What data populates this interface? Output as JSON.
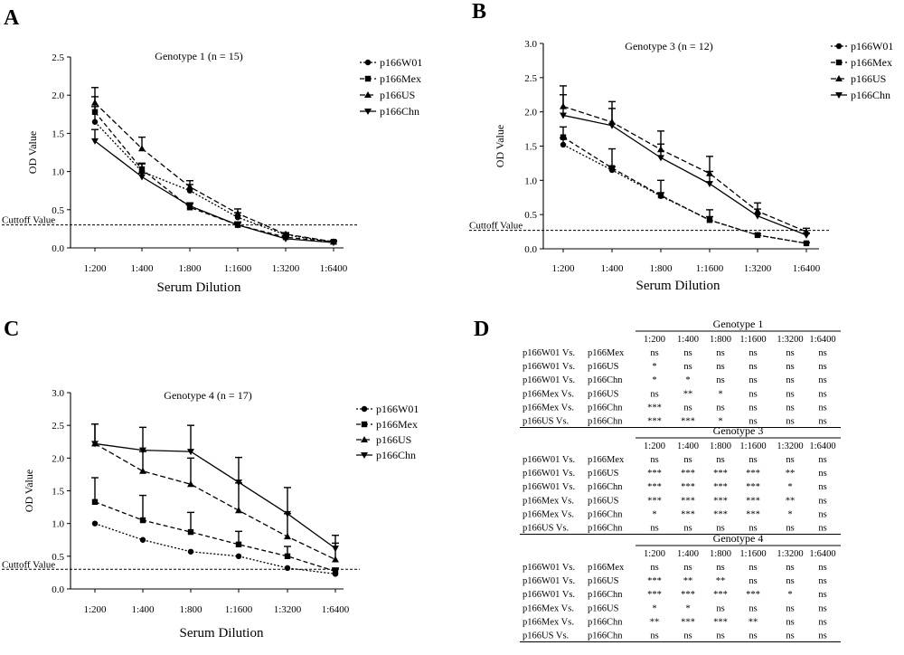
{
  "panels": {
    "A": {
      "letter": "A",
      "title": "Genotype 1 (n = 15)",
      "ylabel": "OD Value",
      "xlabel": "Serum Dilution",
      "cutoff_label": "Cuttoff Value"
    },
    "B": {
      "letter": "B",
      "title": "Genotype 3 (n = 12)",
      "ylabel": "OD Value",
      "xlabel": "Serum Dilution",
      "cutoff_label": "Cuttoff Value"
    },
    "C": {
      "letter": "C",
      "title": "Genotype 4 (n = 17)",
      "ylabel": "OD Value",
      "xlabel": "Serum Dilution",
      "cutoff_label": "Cuttoff Value"
    },
    "D": {
      "letter": "D"
    }
  },
  "chart_data": [
    {
      "type": "line",
      "title": "Genotype 1 (n = 15)",
      "xlabel": "Serum Dilution",
      "ylabel": "OD Value",
      "categories": [
        "1:200",
        "1:400",
        "1:800",
        "1:1600",
        "1:3200",
        "1:6400"
      ],
      "ylim": [
        0,
        2.5
      ],
      "yticks": [
        "0.0",
        "0.5",
        "1.0",
        "1.5",
        "2.0",
        "2.5"
      ],
      "cutoff": 0.3,
      "cutoff_label": "Cuttoff Value",
      "legend_position": "top-right",
      "series": [
        {
          "name": "p166W01",
          "marker": "circle",
          "dash": "2,2",
          "values": [
            1.65,
            1.0,
            0.75,
            0.4,
            0.17,
            0.08
          ],
          "err": [
            0.2,
            0.1,
            0.08,
            0.06,
            0.02,
            0.01
          ]
        },
        {
          "name": "p166Mex",
          "marker": "square",
          "dash": "5,3",
          "values": [
            1.78,
            1.03,
            0.53,
            0.3,
            0.14,
            0.08
          ],
          "err": [
            0.2,
            0.08,
            0.05,
            0.04,
            0.02,
            0.01
          ]
        },
        {
          "name": "p166US",
          "marker": "triangle-up",
          "dash": "6,3",
          "values": [
            1.9,
            1.3,
            0.8,
            0.45,
            0.18,
            0.08
          ],
          "err": [
            0.2,
            0.15,
            0.08,
            0.06,
            0.02,
            0.01
          ]
        },
        {
          "name": "p166Chn",
          "marker": "triangle-down",
          "dash": "",
          "values": [
            1.4,
            0.93,
            0.55,
            0.3,
            0.12,
            0.07
          ],
          "err": [
            0.15,
            0.05,
            0.04,
            0.03,
            0.02,
            0.01
          ]
        }
      ]
    },
    {
      "type": "line",
      "title": "Genotype 3 (n = 12)",
      "xlabel": "Serum Dilution",
      "ylabel": "OD Value",
      "categories": [
        "1:200",
        "1:400",
        "1:800",
        "1:1600",
        "1:3200",
        "1:6400"
      ],
      "ylim": [
        0,
        3.0
      ],
      "yticks": [
        "0.0",
        "0.5",
        "1.0",
        "1.5",
        "2.0",
        "2.5",
        "3.0"
      ],
      "cutoff": 0.27,
      "cutoff_label": "Cuttoff Value",
      "legend_position": "top-right",
      "series": [
        {
          "name": "p166W01",
          "marker": "circle",
          "dash": "2,2",
          "values": [
            1.52,
            1.15,
            0.77,
            0.42,
            0.2,
            0.08
          ],
          "err": [
            0.1,
            0.05,
            0.05,
            0.05,
            0.02,
            0.01
          ]
        },
        {
          "name": "p166Mex",
          "marker": "square",
          "dash": "5,3",
          "values": [
            1.63,
            1.18,
            0.78,
            0.42,
            0.2,
            0.08
          ],
          "err": [
            0.15,
            0.28,
            0.22,
            0.15,
            0.02,
            0.01
          ]
        },
        {
          "name": "p166US",
          "marker": "triangle-up",
          "dash": "6,3",
          "values": [
            2.08,
            1.85,
            1.45,
            1.1,
            0.55,
            0.25
          ],
          "err": [
            0.3,
            0.3,
            0.27,
            0.25,
            0.12,
            0.05
          ]
        },
        {
          "name": "p166Chn",
          "marker": "triangle-down",
          "dash": "",
          "values": [
            1.95,
            1.8,
            1.33,
            0.95,
            0.48,
            0.2
          ],
          "err": [
            0.3,
            0.25,
            0.2,
            0.18,
            0.1,
            0.03
          ]
        }
      ]
    },
    {
      "type": "line",
      "title": "Genotype 4 (n = 17)",
      "xlabel": "Serum Dilution",
      "ylabel": "OD Value",
      "categories": [
        "1:200",
        "1:400",
        "1:800",
        "1:1600",
        "1:3200",
        "1:6400"
      ],
      "ylim": [
        0,
        3.0
      ],
      "yticks": [
        "0.0",
        "0.5",
        "1.0",
        "1.5",
        "2.0",
        "2.5",
        "3.0"
      ],
      "cutoff": 0.3,
      "cutoff_label": "Cuttoff Value",
      "legend_position": "top-right",
      "series": [
        {
          "name": "p166W01",
          "marker": "circle",
          "dash": "2,2",
          "values": [
            1.0,
            0.75,
            0.57,
            0.5,
            0.32,
            0.23
          ],
          "err": [
            0,
            0,
            0,
            0,
            0,
            0
          ]
        },
        {
          "name": "p166Mex",
          "marker": "square",
          "dash": "5,3",
          "values": [
            1.33,
            1.05,
            0.87,
            0.68,
            0.5,
            0.27
          ],
          "err": [
            0.37,
            0.38,
            0.3,
            0.2,
            0.15,
            0.05
          ]
        },
        {
          "name": "p166US",
          "marker": "triangle-up",
          "dash": "6,3",
          "values": [
            2.22,
            1.8,
            1.6,
            1.2,
            0.8,
            0.45
          ],
          "err": [
            0.3,
            0.3,
            0.4,
            0.42,
            0.35,
            0.25
          ]
        },
        {
          "name": "p166Chn",
          "marker": "triangle-down",
          "dash": "",
          "values": [
            2.22,
            2.12,
            2.1,
            1.63,
            1.15,
            0.62
          ],
          "err": [
            0.3,
            0.35,
            0.4,
            0.38,
            0.4,
            0.2
          ]
        }
      ]
    },
    {
      "type": "table",
      "columns": [
        "1:200",
        "1:400",
        "1:800",
        "1:1600",
        "1:3200",
        "1:6400"
      ],
      "groups": [
        {
          "title": "Genotype 1",
          "rows": [
            {
              "a": "p166W01 Vs.",
              "b": "p166Mex",
              "v": [
                "ns",
                "ns",
                "ns",
                "ns",
                "ns",
                "ns"
              ]
            },
            {
              "a": "p166W01 Vs.",
              "b": "p166US",
              "v": [
                "*",
                "ns",
                "ns",
                "ns",
                "ns",
                "ns"
              ]
            },
            {
              "a": "p166W01 Vs.",
              "b": "p166Chn",
              "v": [
                "*",
                "*",
                "ns",
                "ns",
                "ns",
                "ns"
              ]
            },
            {
              "a": "p166Mex Vs.",
              "b": "p166US",
              "v": [
                "ns",
                "**",
                "*",
                "ns",
                "ns",
                "ns"
              ]
            },
            {
              "a": "p166Mex Vs.",
              "b": "p166Chn",
              "v": [
                "***",
                "ns",
                "ns",
                "ns",
                "ns",
                "ns"
              ]
            },
            {
              "a": "p166US   Vs.",
              "b": "p166Chn",
              "v": [
                "***",
                "***",
                "*",
                "ns",
                "ns",
                "ns"
              ]
            }
          ]
        },
        {
          "title": "Genotype 3",
          "rows": [
            {
              "a": "p166W01 Vs.",
              "b": "p166Mex",
              "v": [
                "ns",
                "ns",
                "ns",
                "ns",
                "ns",
                "ns"
              ]
            },
            {
              "a": "p166W01 Vs.",
              "b": "p166US",
              "v": [
                "***",
                "***",
                "***",
                "***",
                "**",
                "ns"
              ]
            },
            {
              "a": "p166W01 Vs.",
              "b": "p166Chn",
              "v": [
                "***",
                "***",
                "***",
                "***",
                "*",
                "ns"
              ]
            },
            {
              "a": "p166Mex Vs.",
              "b": "p166US",
              "v": [
                "***",
                "***",
                "***",
                "***",
                "**",
                "ns"
              ]
            },
            {
              "a": "p166Mex Vs.",
              "b": "p166Chn",
              "v": [
                "*",
                "***",
                "***",
                "***",
                "*",
                "ns"
              ]
            },
            {
              "a": "p166US   Vs.",
              "b": "p166Chn",
              "v": [
                "ns",
                "ns",
                "ns",
                "ns",
                "ns",
                "ns"
              ]
            }
          ]
        },
        {
          "title": "Genotype 4",
          "rows": [
            {
              "a": "p166W01 Vs.",
              "b": "p166Mex",
              "v": [
                "ns",
                "ns",
                "ns",
                "ns",
                "ns",
                "ns"
              ]
            },
            {
              "a": "p166W01 Vs.",
              "b": "p166US",
              "v": [
                "***",
                "**",
                "**",
                "ns",
                "ns",
                "ns"
              ]
            },
            {
              "a": "p166W01 Vs.",
              "b": "p166Chn",
              "v": [
                "***",
                "***",
                "***",
                "***",
                "*",
                "ns"
              ]
            },
            {
              "a": "p166Mex Vs.",
              "b": "p166US",
              "v": [
                "*",
                "*",
                "ns",
                "ns",
                "ns",
                "ns"
              ]
            },
            {
              "a": "p166Mex Vs.",
              "b": "p166Chn",
              "v": [
                "**",
                "***",
                "***",
                "**",
                "ns",
                "ns"
              ]
            },
            {
              "a": "p166US   Vs.",
              "b": "p166Chn",
              "v": [
                "ns",
                "ns",
                "ns",
                "ns",
                "ns",
                "ns"
              ]
            }
          ]
        }
      ]
    }
  ]
}
